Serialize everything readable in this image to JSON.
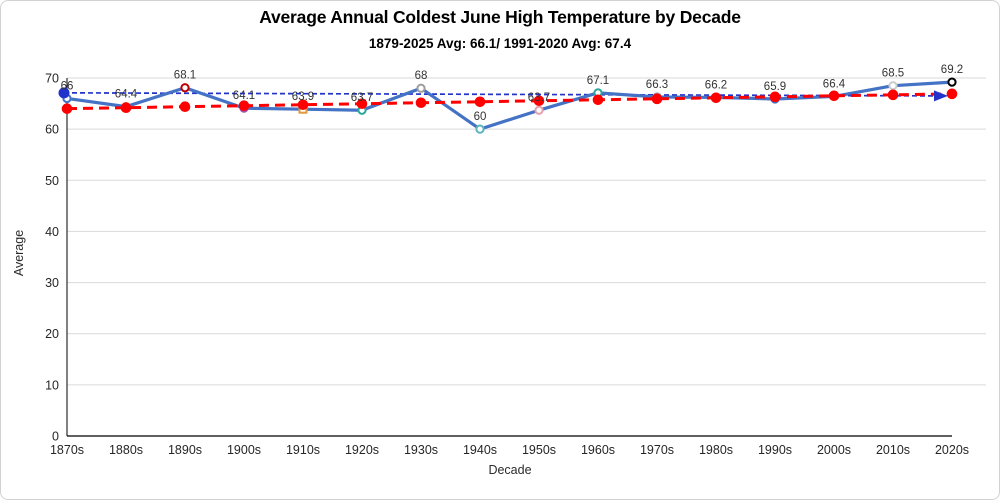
{
  "chart": {
    "title": "Average Annual Coldest June High Temperature by Decade",
    "subtitle": "1879-2025 Avg: 66.1/ 1991-2020 Avg: 67.4"
  },
  "chart_data": {
    "type": "line",
    "title": "Average Annual Coldest June High Temperature by Decade",
    "subtitle": "1879-2025 Avg: 66.1/ 1991-2020 Avg: 67.4",
    "xlabel": "Decade",
    "ylabel": "Average",
    "ylim": [
      0,
      70
    ],
    "yticks": [
      0,
      10,
      20,
      30,
      40,
      50,
      60,
      70
    ],
    "grid": "horizontal",
    "legend": "none",
    "categories": [
      "1870s",
      "1880s",
      "1890s",
      "1900s",
      "1910s",
      "1920s",
      "1930s",
      "1940s",
      "1950s",
      "1960s",
      "1970s",
      "1980s",
      "1990s",
      "2000s",
      "2010s",
      "2020s"
    ],
    "series": [
      {
        "name": "decade-average",
        "type": "line-with-markers",
        "color": "#4472C4",
        "values": [
          66,
          64.4,
          68.1,
          64.1,
          63.9,
          63.7,
          68,
          60,
          63.7,
          67.1,
          66.3,
          66.2,
          65.9,
          66.4,
          68.5,
          69.2
        ],
        "labels": [
          "66",
          "64.4",
          "68.1",
          "64.1",
          "63.9",
          "63.7",
          "68",
          "60",
          "63.7",
          "67.1",
          "66.3",
          "66.2",
          "65.9",
          "66.4",
          "68.5",
          "69.2"
        ],
        "marker_colors": [
          "#4472C4",
          "#D47B2A",
          "#C00000",
          "#A050B4",
          "#E09A3E",
          "#2AA69A",
          "#9E9E9E",
          "#5AB5BE",
          "#E8A0AC",
          "#2AA69A",
          "#9E9E9E",
          "#9E9E9E",
          "#4472C4",
          "#9E9E9E",
          "#CCCCCC",
          "#000000"
        ],
        "marker_shapes": [
          "circle",
          "circle",
          "circle",
          "circle",
          "square",
          "circle",
          "circle",
          "circle",
          "circle",
          "circle",
          "circle",
          "circle",
          "circle",
          "circle",
          "circle",
          "circle"
        ]
      },
      {
        "name": "linear-trend",
        "type": "dashed-line-with-dots",
        "color": "#FF0000",
        "values": [
          64.0,
          64.19,
          64.39,
          64.58,
          64.77,
          64.97,
          65.16,
          65.35,
          65.55,
          65.74,
          65.93,
          66.13,
          66.32,
          66.52,
          66.71,
          66.9
        ]
      },
      {
        "name": "average-reference-arrow",
        "type": "dashed-arrow",
        "color": "#2233CC",
        "start_value": 67.1,
        "end_value": 66.5
      }
    ],
    "axis_color": "#000000",
    "grid_color": "#d9d9d9",
    "tick_color": "#262626",
    "data_label_color": "#333333"
  }
}
